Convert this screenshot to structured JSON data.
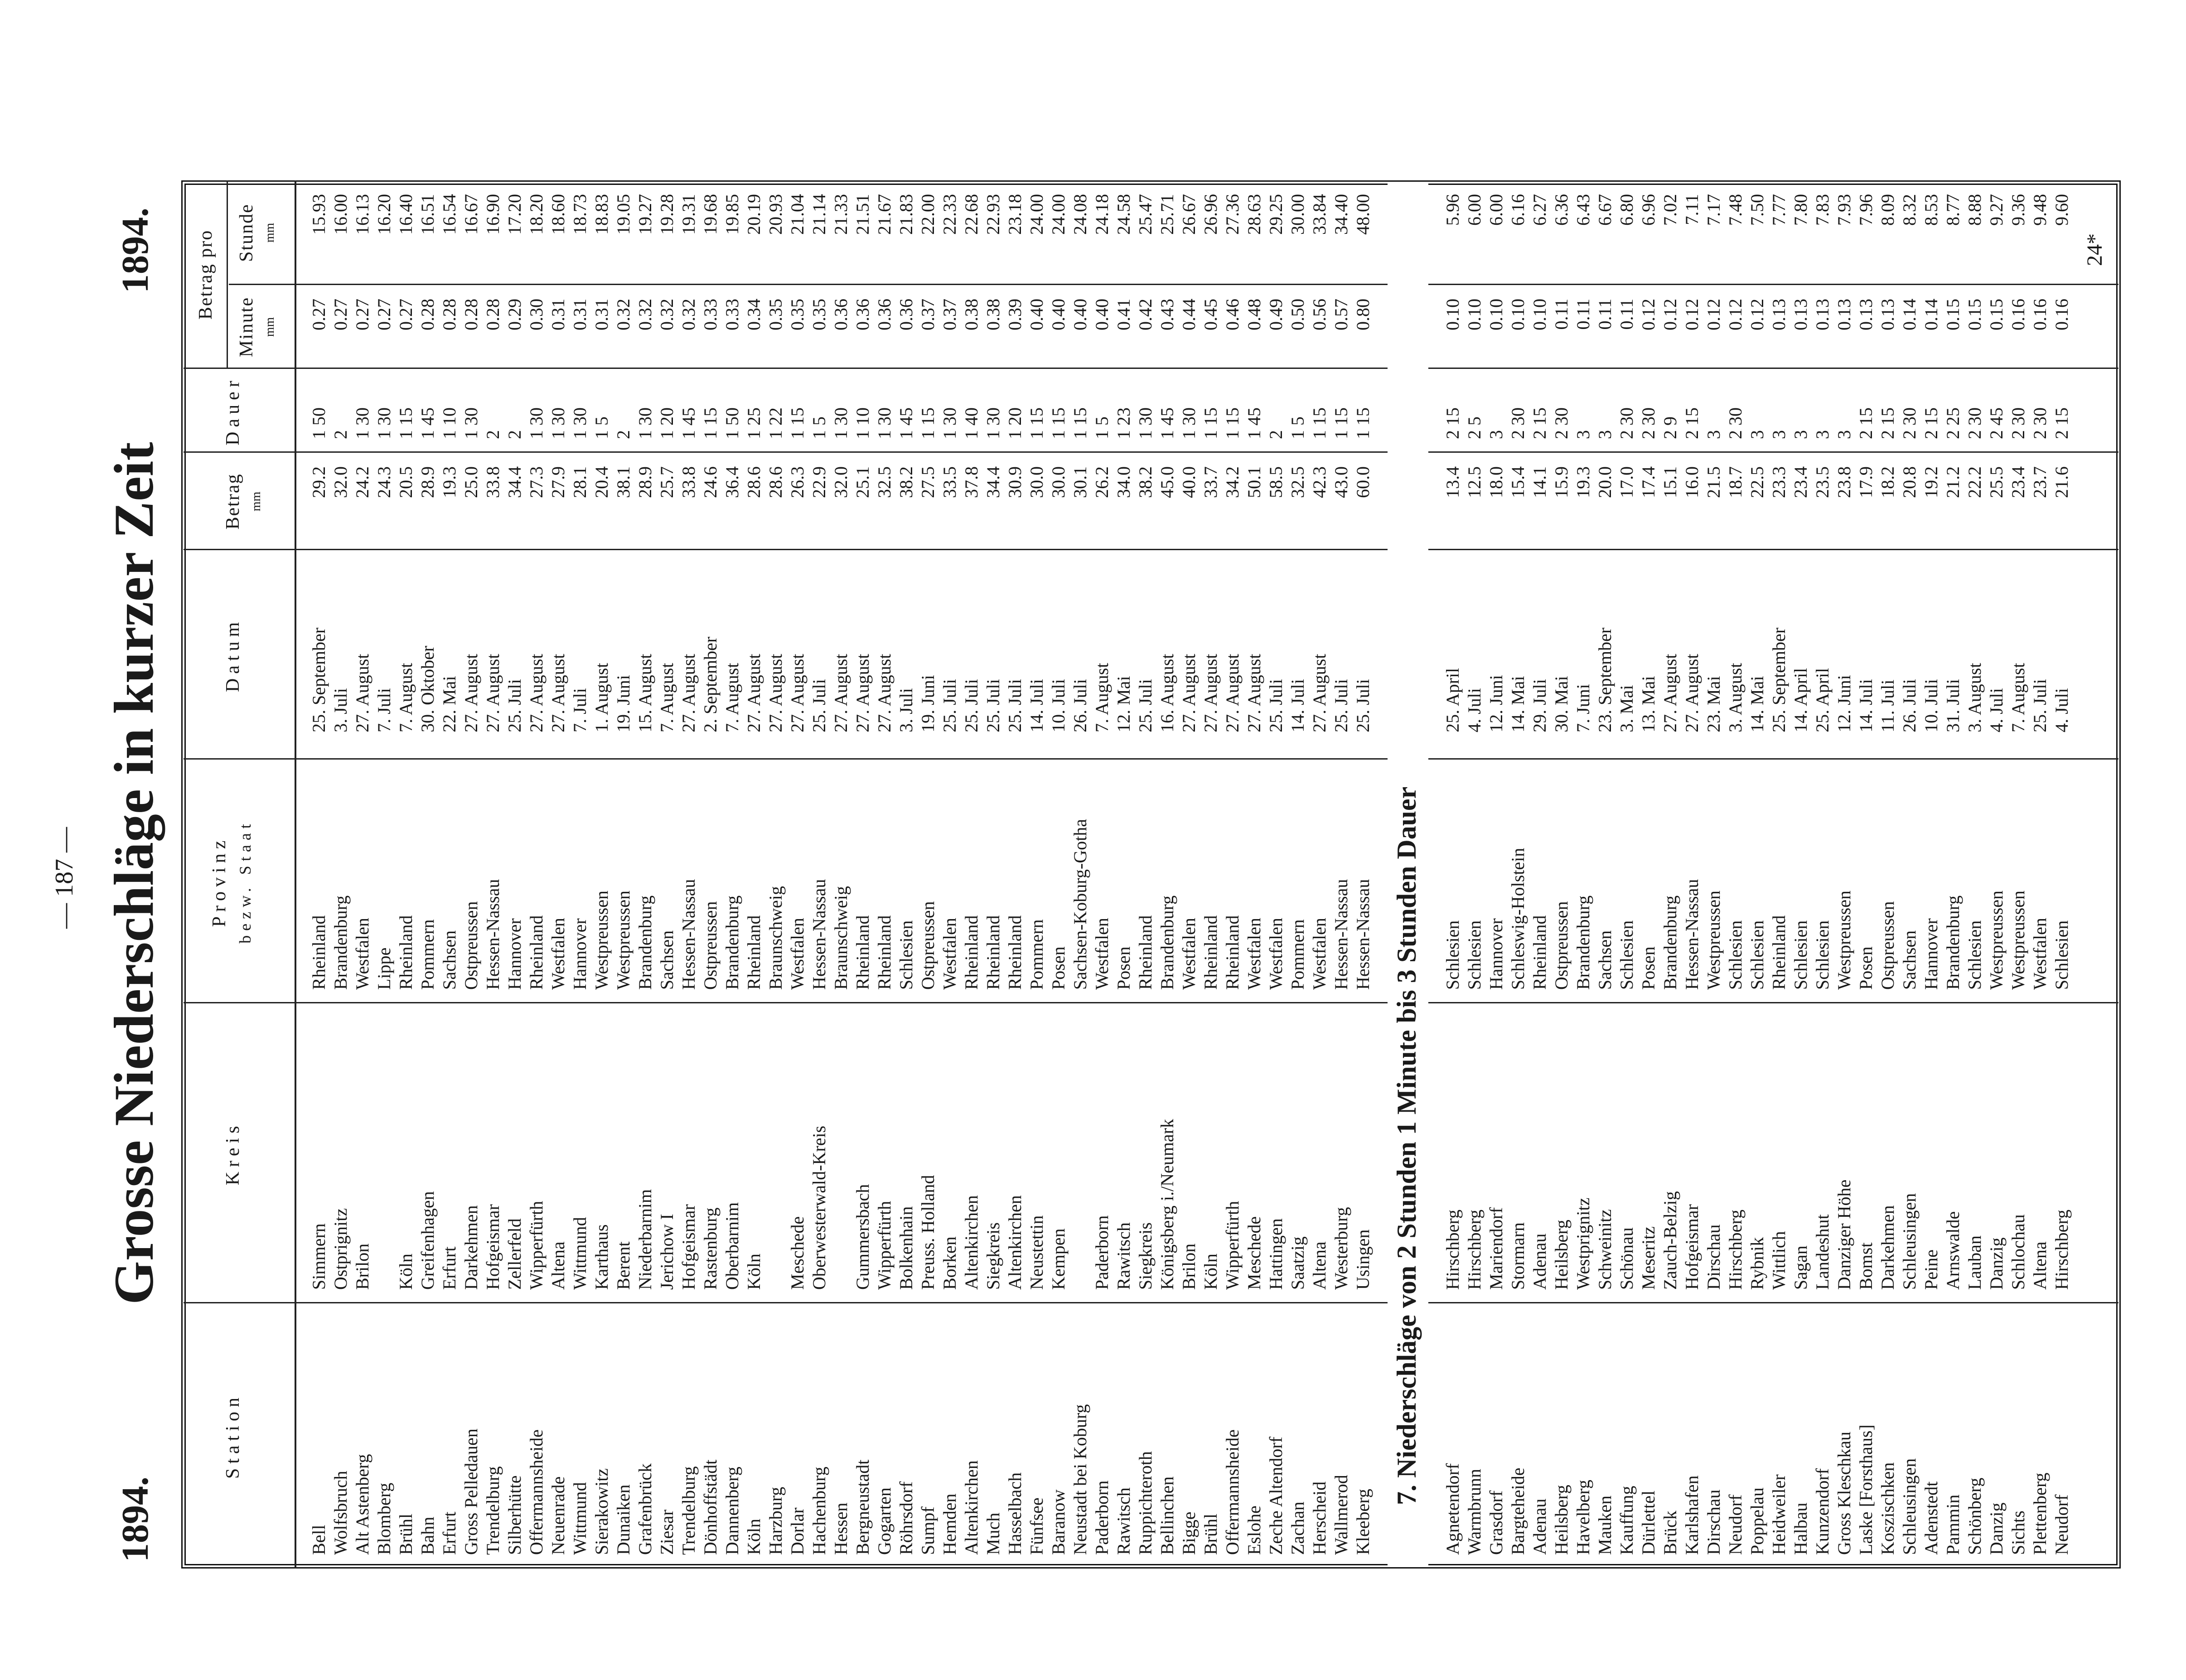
{
  "header": {
    "page_number": "— 187 —",
    "year_left": "1894.",
    "year_right": "1894.",
    "title": "Grosse Niederschläge in kurzer Zeit"
  },
  "table": {
    "columns": [
      {
        "label": "Station"
      },
      {
        "label": "Kreis"
      },
      {
        "label": "Provinz",
        "sublabel": "bezw. Staat"
      },
      {
        "label": "Datum"
      },
      {
        "label": "Betrag",
        "unit": "mm"
      },
      {
        "label": "Dauer"
      },
      {
        "label": "Minute",
        "unit": "mm"
      },
      {
        "label": "Stunde",
        "unit": "mm"
      }
    ],
    "group_header": "Betrag pro",
    "sections": [
      {
        "rows": [
          [
            "Bell",
            "Simmern",
            "Rheinland",
            "25. September",
            "29.2",
            "1 50",
            "0.27",
            "15.93"
          ],
          [
            "Wolfsbruch",
            "Ostprignitz",
            "Brandenburg",
            "3. Juli",
            "32.0",
            "2",
            "0.27",
            "16.00"
          ],
          [
            "Alt Astenberg",
            "Brilon",
            "Westfalen",
            "27. August",
            "24.2",
            "1 30",
            "0.27",
            "16.13"
          ],
          [
            "Blomberg",
            null,
            "Lippe",
            "7. Juli",
            "24.3",
            "1 30",
            "0.27",
            "16.20"
          ],
          [
            "Brühl",
            "Köln",
            "Rheinland",
            "7. August",
            "20.5",
            "1 15",
            "0.27",
            "16.40"
          ],
          [
            "Bahn",
            "Greifenhagen",
            "Pommern",
            "30. Oktober",
            "28.9",
            "1 45",
            "0.28",
            "16.51"
          ],
          [
            "Erfurt",
            "Erfurt",
            "Sachsen",
            "22. Mai",
            "19.3",
            "1 10",
            "0.28",
            "16.54"
          ],
          [
            "Gross Pelledauen",
            "Darkehmen",
            "Ostpreussen",
            "27. August",
            "25.0",
            "1 30",
            "0.28",
            "16.67"
          ],
          [
            "Trendelburg",
            "Hofgeismar",
            "Hessen-Nassau",
            "27. August",
            "33.8",
            "2",
            "0.28",
            "16.90"
          ],
          [
            "Silberhütte",
            "Zellerfeld",
            "Hannover",
            "25. Juli",
            "34.4",
            "2",
            "0.29",
            "17.20"
          ],
          [
            "Offermannsheide",
            "Wipperfürth",
            "Rheinland",
            "27. August",
            "27.3",
            "1 30",
            "0.30",
            "18.20"
          ],
          [
            "Neuenrade",
            "Altena",
            "Westfalen",
            "27. August",
            "27.9",
            "1 30",
            "0.31",
            "18.60"
          ],
          [
            "Wittmund",
            "Wittmund",
            "Hannover",
            "7. Juli",
            "28.1",
            "1 30",
            "0.31",
            "18.73"
          ],
          [
            "Sierakowitz",
            "Karthaus",
            "Westpreussen",
            "1. August",
            "20.4",
            "1 5",
            "0.31",
            "18.83"
          ],
          [
            "Dunaiken",
            "Berent",
            "Westpreussen",
            "19. Juni",
            "38.1",
            "2",
            "0.32",
            "19.05"
          ],
          [
            "Grafenbrück",
            "Niederbarnim",
            "Brandenburg",
            "15. August",
            "28.9",
            "1 30",
            "0.32",
            "19.27"
          ],
          [
            "Ziesar",
            "Jerichow I",
            "Sachsen",
            "7. August",
            "25.7",
            "1 20",
            "0.32",
            "19.28"
          ],
          [
            "Trendelburg",
            "Hofgeismar",
            "Hessen-Nassau",
            "27. August",
            "33.8",
            "1 45",
            "0.32",
            "19.31"
          ],
          [
            "Dönhoffstädt",
            "Rastenburg",
            "Ostpreussen",
            "2. September",
            "24.6",
            "1 15",
            "0.33",
            "19.68"
          ],
          [
            "Dannenberg",
            "Oberbarnim",
            "Brandenburg",
            "7. August",
            "36.4",
            "1 50",
            "0.33",
            "19.85"
          ],
          [
            "Köln",
            "Köln",
            "Rheinland",
            "27. August",
            "28.6",
            "1 25",
            "0.34",
            "20.19"
          ],
          [
            "Harzburg",
            null,
            "Braunschweig",
            "27. August",
            "28.6",
            "1 22",
            "0.35",
            "20.93"
          ],
          [
            "Dorlar",
            "Meschede",
            "Westfalen",
            "27. August",
            "26.3",
            "1 15",
            "0.35",
            "21.04"
          ],
          [
            "Hachenburg",
            "Oberwesterwald-Kreis",
            "Hessen-Nassau",
            "25. Juli",
            "22.9",
            "1 5",
            "0.35",
            "21.14"
          ],
          [
            "Hessen",
            null,
            "Braunschweig",
            "27. August",
            "32.0",
            "1 30",
            "0.36",
            "21.33"
          ],
          [
            "Bergneustadt",
            "Gummersbach",
            "Rheinland",
            "27. August",
            "25.1",
            "1 10",
            "0.36",
            "21.51"
          ],
          [
            "Gogarten",
            "Wipperfürth",
            "Rheinland",
            "27. August",
            "32.5",
            "1 30",
            "0.36",
            "21.67"
          ],
          [
            "Röhrsdorf",
            "Bolkenhain",
            "Schlesien",
            "3. Juli",
            "38.2",
            "1 45",
            "0.36",
            "21.83"
          ],
          [
            "Sumpf",
            "Preuss. Holland",
            "Ostpreussen",
            "19. Juni",
            "27.5",
            "1 15",
            "0.37",
            "22.00"
          ],
          [
            "Hemden",
            "Borken",
            "Westfalen",
            "25. Juli",
            "33.5",
            "1 30",
            "0.37",
            "22.33"
          ],
          [
            "Altenkirchen",
            "Altenkirchen",
            "Rheinland",
            "25. Juli",
            "37.8",
            "1 40",
            "0.38",
            "22.68"
          ],
          [
            "Much",
            "Siegkreis",
            "Rheinland",
            "25. Juli",
            "34.4",
            "1 30",
            "0.38",
            "22.93"
          ],
          [
            "Hasselbach",
            "Altenkirchen",
            "Rheinland",
            "25. Juli",
            "30.9",
            "1 20",
            "0.39",
            "23.18"
          ],
          [
            "Fünfsee",
            "Neustettin",
            "Pommern",
            "14. Juli",
            "30.0",
            "1 15",
            "0.40",
            "24.00"
          ],
          [
            "Baranow",
            "Kempen",
            "Posen",
            "10. Juli",
            "30.0",
            "1 15",
            "0.40",
            "24.00"
          ],
          [
            "Neustadt bei Koburg",
            null,
            "Sachsen-Koburg-Gotha",
            "26. Juli",
            "30.1",
            "1 15",
            "0.40",
            "24.08"
          ],
          [
            "Paderborn",
            "Paderborn",
            "Westfalen",
            "7. August",
            "26.2",
            "1 5",
            "0.40",
            "24.18"
          ],
          [
            "Rawitsch",
            "Rawitsch",
            "Posen",
            "12. Mai",
            "34.0",
            "1 23",
            "0.41",
            "24.58"
          ],
          [
            "Ruppichteroth",
            "Siegkreis",
            "Rheinland",
            "25. Juli",
            "38.2",
            "1 30",
            "0.42",
            "25.47"
          ],
          [
            "Bellinchen",
            "Königsberg i./Neumark",
            "Brandenburg",
            "16. August",
            "45.0",
            "1 45",
            "0.43",
            "25.71"
          ],
          [
            "Bigge",
            "Brilon",
            "Westfalen",
            "27. August",
            "40.0",
            "1 30",
            "0.44",
            "26.67"
          ],
          [
            "Brühl",
            "Köln",
            "Rheinland",
            "27. August",
            "33.7",
            "1 15",
            "0.45",
            "26.96"
          ],
          [
            "Offermannsheide",
            "Wipperfürth",
            "Rheinland",
            "27. August",
            "34.2",
            "1 15",
            "0.46",
            "27.36"
          ],
          [
            "Eslohe",
            "Meschede",
            "Westfalen",
            "27. August",
            "50.1",
            "1 45",
            "0.48",
            "28.63"
          ],
          [
            "Zeche Altendorf",
            "Hattingen",
            "Westfalen",
            "25. Juli",
            "58.5",
            "2",
            "0.49",
            "29.25"
          ],
          [
            "Zachan",
            "Saatzig",
            "Pommern",
            "14. Juli",
            "32.5",
            "1 5",
            "0.50",
            "30.00"
          ],
          [
            "Herscheid",
            "Altena",
            "Westfalen",
            "27. August",
            "42.3",
            "1 15",
            "0.56",
            "33.84"
          ],
          [
            "Wallmerod",
            "Westerburg",
            "Hessen-Nassau",
            "25. Juli",
            "43.0",
            "1 15",
            "0.57",
            "34.40"
          ],
          [
            "Kleeberg",
            "Usingen",
            "Hessen-Nassau",
            "25. Juli",
            "60.0",
            "1 15",
            "0.80",
            "48.00"
          ]
        ]
      },
      {
        "heading": "7. Niederschläge von 2 Stunden 1 Minute bis 3 Stunden Dauer",
        "rows": [
          [
            "Agnetendorf",
            "Hirschberg",
            "Schlesien",
            "25. April",
            "13.4",
            "2 15",
            "0.10",
            "5.96"
          ],
          [
            "Warmbrunn",
            "Hirschberg",
            "Schlesien",
            "4. Juli",
            "12.5",
            "2 5",
            "0.10",
            "6.00"
          ],
          [
            "Grasdorf",
            "Mariendorf",
            "Hannover",
            "12. Juni",
            "18.0",
            "3",
            "0.10",
            "6.00"
          ],
          [
            "Bargteheide",
            "Stormarn",
            "Schleswig-Holstein",
            "14. Mai",
            "15.4",
            "2 30",
            "0.10",
            "6.16"
          ],
          [
            "Adenau",
            "Adenau",
            "Rheinland",
            "29. Juli",
            "14.1",
            "2 15",
            "0.10",
            "6.27"
          ],
          [
            "Heilsberg",
            "Heilsberg",
            "Ostpreussen",
            "30. Mai",
            "15.9",
            "2 30",
            "0.11",
            "6.36"
          ],
          [
            "Havelberg",
            "Westprignitz",
            "Brandenburg",
            "7. Juni",
            "19.3",
            "3",
            "0.11",
            "6.43"
          ],
          [
            "Mauken",
            "Schweinitz",
            "Sachsen",
            "23. September",
            "20.0",
            "3",
            "0.11",
            "6.67"
          ],
          [
            "Kauffung",
            "Schönau",
            "Schlesien",
            "3. Mai",
            "17.0",
            "2 30",
            "0.11",
            "6.80"
          ],
          [
            "Dürlettel",
            "Meseritz",
            "Posen",
            "13. Mai",
            "17.4",
            "2 30",
            "0.12",
            "6.96"
          ],
          [
            "Brück",
            "Zauch-Belzig",
            "Brandenburg",
            "27. August",
            "15.1",
            "2 9",
            "0.12",
            "7.02"
          ],
          [
            "Karlshafen",
            "Hofgeismar",
            "Hessen-Nassau",
            "27. August",
            "16.0",
            "2 15",
            "0.12",
            "7.11"
          ],
          [
            "Dirschau",
            "Dirschau",
            "Westpreussen",
            "23. Mai",
            "21.5",
            "3",
            "0.12",
            "7.17"
          ],
          [
            "Neudorf",
            "Hirschberg",
            "Schlesien",
            "3. August",
            "18.7",
            "2 30",
            "0.12",
            "7.48"
          ],
          [
            "Poppelau",
            "Rybnik",
            "Schlesien",
            "14. Mai",
            "22.5",
            "3",
            "0.12",
            "7.50"
          ],
          [
            "Heidweiler",
            "Wittlich",
            "Rheinland",
            "25. September",
            "23.3",
            "3",
            "0.13",
            "7.77"
          ],
          [
            "Halbau",
            "Sagan",
            "Schlesien",
            "14. April",
            "23.4",
            "3",
            "0.13",
            "7.80"
          ],
          [
            "Kunzendorf",
            "Landeshut",
            "Schlesien",
            "25. April",
            "23.5",
            "3",
            "0.13",
            "7.83"
          ],
          [
            "Gross Kleschkau",
            "Danziger Höhe",
            "Westpreussen",
            "12. Juni",
            "23.8",
            "3",
            "0.13",
            "7.93"
          ],
          [
            "Laske [Forsthaus]",
            "Bomst",
            "Posen",
            "14. Juli",
            "17.9",
            "2 15",
            "0.13",
            "7.96"
          ],
          [
            "Koszischken",
            "Darkehmen",
            "Ostpreussen",
            "11. Juli",
            "18.2",
            "2 15",
            "0.13",
            "8.09"
          ],
          [
            "Schleusingen",
            "Schleusingen",
            "Sachsen",
            "26. Juli",
            "20.8",
            "2 30",
            "0.14",
            "8.32"
          ],
          [
            "Adenstedt",
            "Peine",
            "Hannover",
            "10. Juli",
            "19.2",
            "2 15",
            "0.14",
            "8.53"
          ],
          [
            "Pammin",
            "Arnswalde",
            "Brandenburg",
            "31. Juli",
            "21.2",
            "2 25",
            "0.15",
            "8.77"
          ],
          [
            "Schönberg",
            "Lauban",
            "Schlesien",
            "3. August",
            "22.2",
            "2 30",
            "0.15",
            "8.88"
          ],
          [
            "Danzig",
            "Danzig",
            "Westpreussen",
            "4. Juli",
            "25.5",
            "2 45",
            "0.15",
            "9.27"
          ],
          [
            "Sichts",
            "Schlochau",
            "Westpreussen",
            "7. August",
            "23.4",
            "2 30",
            "0.16",
            "9.36"
          ],
          [
            "Plettenberg",
            "Altena",
            "Westfalen",
            "25. Juli",
            "23.7",
            "2 30",
            "0.16",
            "9.48"
          ],
          [
            "Neudorf",
            "Hirschberg",
            "Schlesien",
            "4. Juli",
            "21.6",
            "2 15",
            "0.16",
            "9.60"
          ]
        ]
      }
    ]
  },
  "footer": {
    "signature": "24*"
  }
}
